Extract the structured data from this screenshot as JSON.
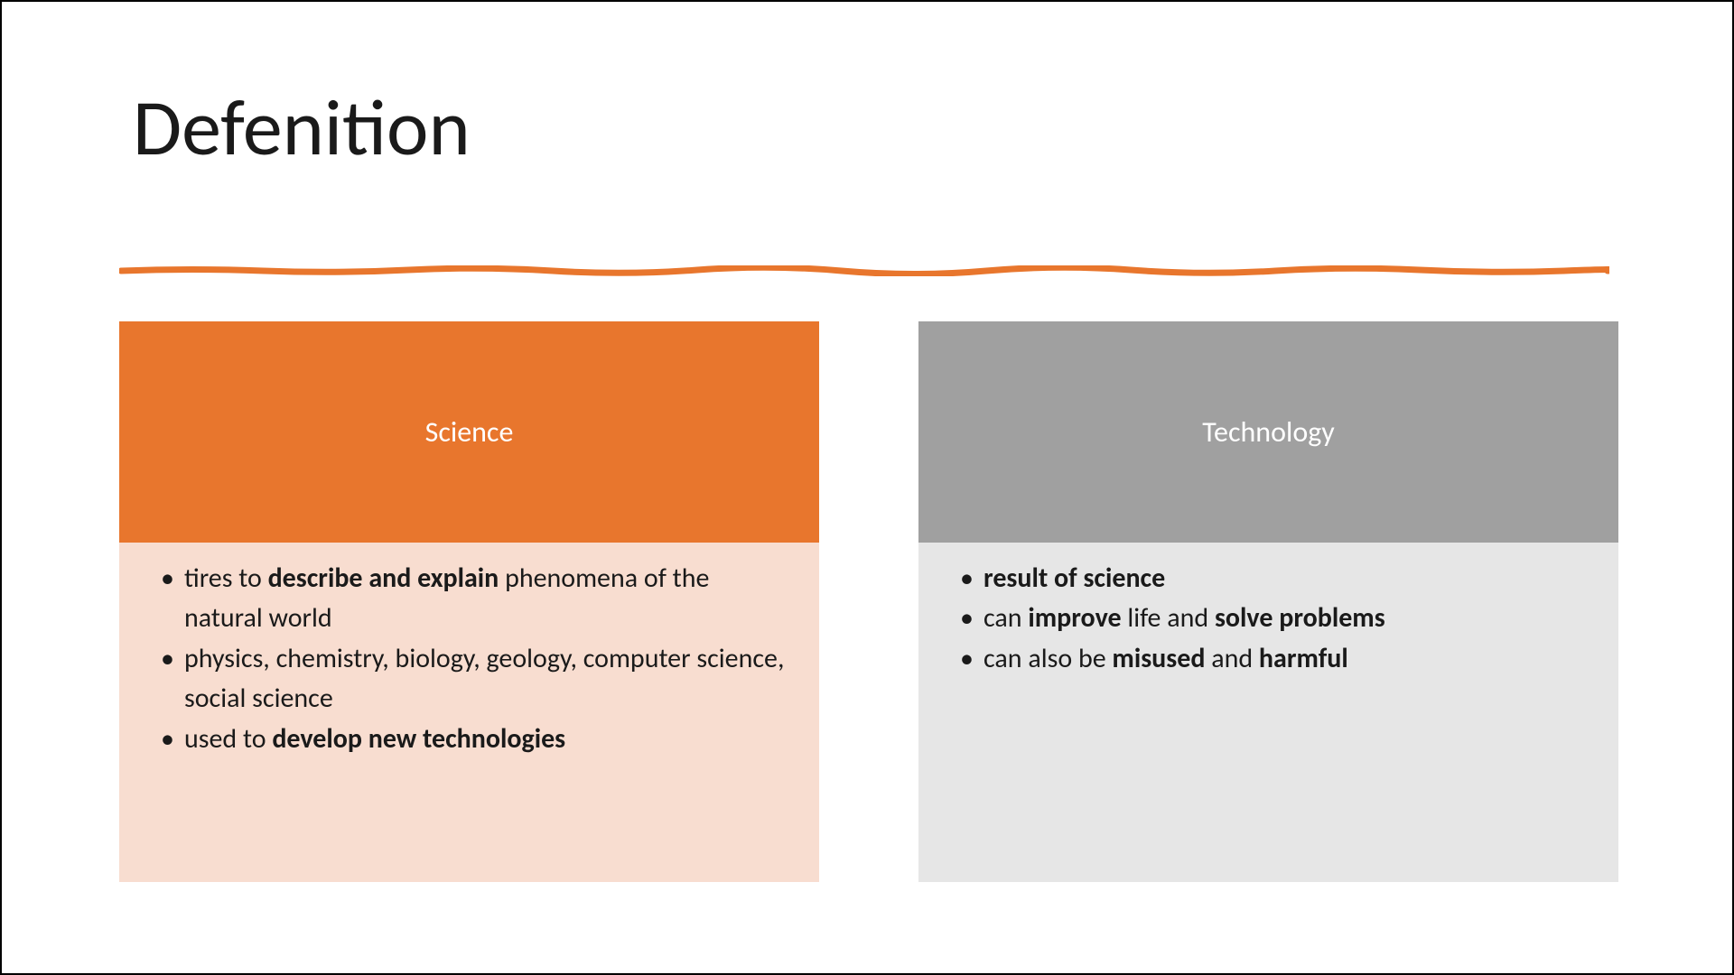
{
  "slide": {
    "title": "Defenition",
    "divider_color": "#e8762d",
    "background_color": "#ffffff",
    "border_color": "#000000",
    "title_fontsize": 88,
    "title_color": "#1a1a1a"
  },
  "columns": [
    {
      "header": "Science",
      "header_bg": "#e8762d",
      "header_text_color": "#ffffff",
      "body_bg": "#f8ddd0",
      "body_text_color": "#1a1a1a",
      "header_fontsize": 32,
      "body_fontsize": 30,
      "bullets": [
        {
          "html": "tires to <span class=\"bold\">describe and explain</span> phenomena of the natural world"
        },
        {
          "html": "physics, chemistry, biology, geology, computer science, social science"
        },
        {
          "html": "used to <span class=\"bold\">develop new technologies</span>"
        }
      ]
    },
    {
      "header": "Technology",
      "header_bg": "#a0a0a0",
      "header_text_color": "#ffffff",
      "body_bg": "#e6e6e6",
      "body_text_color": "#1a1a1a",
      "header_fontsize": 32,
      "body_fontsize": 30,
      "bullets": [
        {
          "html": "<span class=\"bold\">result of science</span>"
        },
        {
          "html": "can <span class=\"bold\">improve</span> life and <span class=\"bold\">solve problems</span>"
        },
        {
          "html": "can also be <span class=\"bold\">misused</span> and <span class=\"bold\">harmful</span>"
        }
      ]
    }
  ]
}
